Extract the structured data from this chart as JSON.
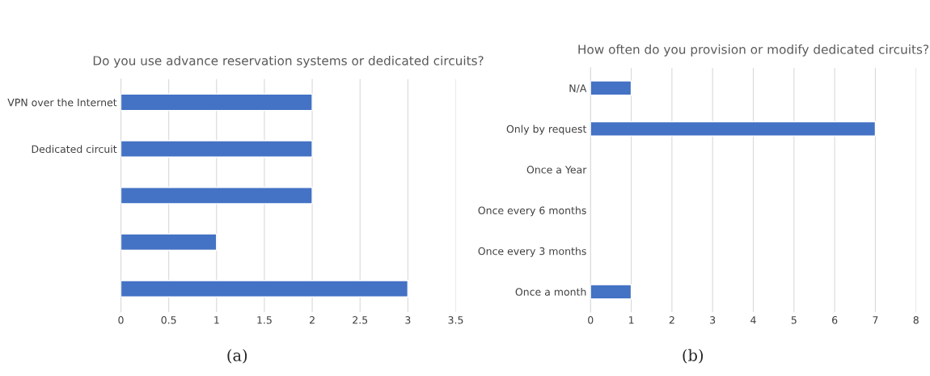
{
  "chart_data": [
    {
      "type": "bar",
      "orientation": "horizontal",
      "title": "Do you use advance reservation systems or dedicated circuits?",
      "categories": [
        "VPN over the Internet",
        "Dedicated circuit",
        null,
        null,
        null
      ],
      "values": [
        2,
        2,
        2,
        1,
        3
      ],
      "color": "#4472c4",
      "xlim": [
        0,
        3.5
      ],
      "xticks": [
        0,
        0.5,
        1,
        1.5,
        2,
        2.5,
        3,
        3.5
      ],
      "grid": "x",
      "annotations": [
        "(a)"
      ]
    },
    {
      "type": "bar",
      "orientation": "horizontal",
      "title": "How often do you provision or modify dedicated circuits?",
      "categories": [
        "N/A",
        "Only by request",
        "Once a Year",
        "Once every 6 months",
        "Once every 3 months",
        "Once a month"
      ],
      "values": [
        1,
        7,
        0,
        0,
        0,
        1
      ],
      "color": "#4472c4",
      "xlim": [
        0,
        8
      ],
      "xticks": [
        0,
        1,
        2,
        3,
        4,
        5,
        6,
        7,
        8
      ],
      "grid": "x",
      "annotations": [
        "(b)"
      ]
    }
  ]
}
